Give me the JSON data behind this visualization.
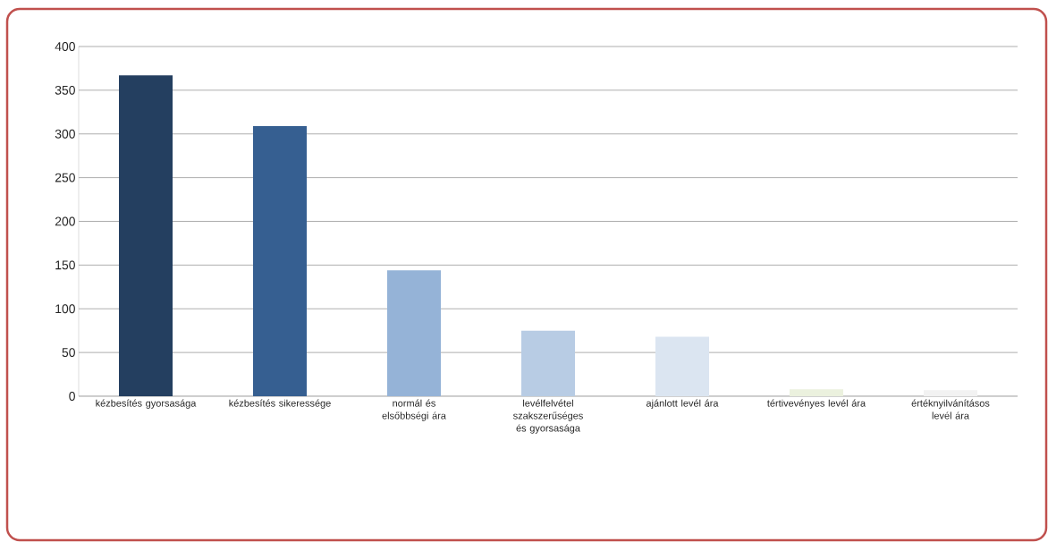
{
  "chart_data": {
    "type": "bar",
    "categories": [
      "kézbesítés gyorsasága",
      "kézbesítés sikeressége",
      "normál és elsőbbségi ára",
      "levélfelvétel szakszerűséges és gyorsasága",
      "ajánlott levél ára",
      "tértivevényes levél ára",
      "értéknyilvánításos levél ára"
    ],
    "values": [
      367,
      309,
      144,
      75,
      68,
      8,
      7
    ],
    "colors": [
      "#243f60",
      "#365f91",
      "#95b3d7",
      "#b8cce4",
      "#dbe5f1",
      "#ebf1de",
      "#f2f2f2"
    ],
    "ylim": [
      0,
      400
    ],
    "yticks": [
      0,
      50,
      100,
      150,
      200,
      250,
      300,
      350,
      400
    ],
    "grid": "y"
  }
}
